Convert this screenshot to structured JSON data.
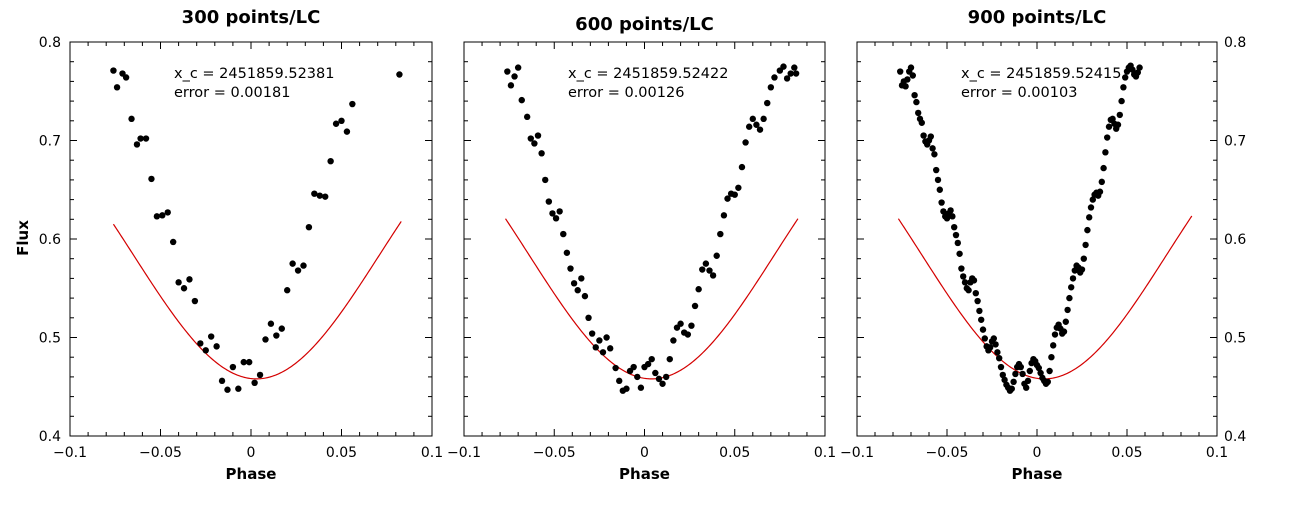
{
  "figure": {
    "ylabel": "Flux"
  },
  "chart_data": [
    {
      "type": "scatter",
      "title": "300 points/LC",
      "xlabel": "Phase",
      "ylabel": "Flux",
      "xlim": [
        -0.1,
        0.1
      ],
      "ylim": [
        0.4,
        0.8
      ],
      "x_ticks": [
        -0.1,
        -0.05,
        0,
        0.05,
        0.1
      ],
      "x_tick_labels": [
        "−0.1",
        "−0.05",
        "0",
        "0.05",
        "0.1"
      ],
      "y_ticks": [
        0.4,
        0.5,
        0.6,
        0.7,
        0.8
      ],
      "y_tick_labels": [
        "0.4",
        "0.5",
        "0.6",
        "0.7",
        "0.8"
      ],
      "y_tick_side": "left",
      "annotation": [
        "x_c = 2451859.52381",
        "error = 0.00181"
      ],
      "fit": {
        "center": 0.003,
        "depth_min": 0.458,
        "amplitude": 0.32,
        "width": 0.068,
        "x_range": [
          -0.076,
          0.083
        ],
        "color": "#d40000"
      },
      "points": [
        {
          "x": -0.076,
          "y": 0.771
        },
        {
          "x": -0.074,
          "y": 0.754
        },
        {
          "x": -0.071,
          "y": 0.768
        },
        {
          "x": -0.069,
          "y": 0.764
        },
        {
          "x": -0.066,
          "y": 0.722
        },
        {
          "x": -0.063,
          "y": 0.696
        },
        {
          "x": -0.061,
          "y": 0.702
        },
        {
          "x": -0.058,
          "y": 0.702
        },
        {
          "x": -0.055,
          "y": 0.661
        },
        {
          "x": -0.052,
          "y": 0.623
        },
        {
          "x": -0.049,
          "y": 0.624
        },
        {
          "x": -0.046,
          "y": 0.627
        },
        {
          "x": -0.043,
          "y": 0.597
        },
        {
          "x": -0.04,
          "y": 0.556
        },
        {
          "x": -0.037,
          "y": 0.55
        },
        {
          "x": -0.034,
          "y": 0.559
        },
        {
          "x": -0.031,
          "y": 0.537
        },
        {
          "x": -0.028,
          "y": 0.494
        },
        {
          "x": -0.025,
          "y": 0.487
        },
        {
          "x": -0.022,
          "y": 0.501
        },
        {
          "x": -0.019,
          "y": 0.491
        },
        {
          "x": -0.016,
          "y": 0.456
        },
        {
          "x": -0.013,
          "y": 0.447
        },
        {
          "x": -0.01,
          "y": 0.47
        },
        {
          "x": -0.007,
          "y": 0.448
        },
        {
          "x": -0.004,
          "y": 0.475
        },
        {
          "x": -0.001,
          "y": 0.475
        },
        {
          "x": 0.002,
          "y": 0.454
        },
        {
          "x": 0.005,
          "y": 0.462
        },
        {
          "x": 0.008,
          "y": 0.498
        },
        {
          "x": 0.011,
          "y": 0.514
        },
        {
          "x": 0.014,
          "y": 0.502
        },
        {
          "x": 0.017,
          "y": 0.509
        },
        {
          "x": 0.02,
          "y": 0.548
        },
        {
          "x": 0.023,
          "y": 0.575
        },
        {
          "x": 0.026,
          "y": 0.568
        },
        {
          "x": 0.029,
          "y": 0.573
        },
        {
          "x": 0.032,
          "y": 0.612
        },
        {
          "x": 0.035,
          "y": 0.646
        },
        {
          "x": 0.038,
          "y": 0.644
        },
        {
          "x": 0.041,
          "y": 0.643
        },
        {
          "x": 0.044,
          "y": 0.679
        },
        {
          "x": 0.047,
          "y": 0.717
        },
        {
          "x": 0.05,
          "y": 0.72
        },
        {
          "x": 0.053,
          "y": 0.709
        },
        {
          "x": 0.056,
          "y": 0.737
        },
        {
          "x": 0.082,
          "y": 0.767
        }
      ]
    },
    {
      "type": "scatter",
      "title": "600 points/LC",
      "xlabel": "Phase",
      "ylabel": "",
      "xlim": [
        -0.1,
        0.1
      ],
      "ylim": [
        0.4,
        0.8
      ],
      "x_ticks": [
        -0.1,
        -0.05,
        0,
        0.05,
        0.1
      ],
      "x_tick_labels": [
        "−0.1",
        "−0.05",
        "0",
        "0.05",
        "0.1"
      ],
      "y_ticks": [
        0.4,
        0.5,
        0.6,
        0.7,
        0.8
      ],
      "y_tick_labels": [],
      "y_tick_side": "none",
      "annotation": [
        "x_c = 2451859.52422",
        "error = 0.00126"
      ],
      "fit": {
        "center": 0.004,
        "depth_min": 0.458,
        "amplitude": 0.32,
        "width": 0.068,
        "x_range": [
          -0.077,
          0.085
        ],
        "color": "#d40000"
      },
      "points": [
        {
          "x": -0.076,
          "y": 0.77
        },
        {
          "x": -0.074,
          "y": 0.756
        },
        {
          "x": -0.072,
          "y": 0.765
        },
        {
          "x": -0.07,
          "y": 0.774
        },
        {
          "x": -0.068,
          "y": 0.741
        },
        {
          "x": -0.065,
          "y": 0.724
        },
        {
          "x": -0.063,
          "y": 0.702
        },
        {
          "x": -0.061,
          "y": 0.697
        },
        {
          "x": -0.059,
          "y": 0.705
        },
        {
          "x": -0.057,
          "y": 0.687
        },
        {
          "x": -0.055,
          "y": 0.66
        },
        {
          "x": -0.053,
          "y": 0.638
        },
        {
          "x": -0.051,
          "y": 0.626
        },
        {
          "x": -0.049,
          "y": 0.621
        },
        {
          "x": -0.047,
          "y": 0.628
        },
        {
          "x": -0.045,
          "y": 0.605
        },
        {
          "x": -0.043,
          "y": 0.586
        },
        {
          "x": -0.041,
          "y": 0.57
        },
        {
          "x": -0.039,
          "y": 0.555
        },
        {
          "x": -0.037,
          "y": 0.548
        },
        {
          "x": -0.035,
          "y": 0.56
        },
        {
          "x": -0.033,
          "y": 0.542
        },
        {
          "x": -0.031,
          "y": 0.52
        },
        {
          "x": -0.029,
          "y": 0.504
        },
        {
          "x": -0.027,
          "y": 0.49
        },
        {
          "x": -0.025,
          "y": 0.497
        },
        {
          "x": -0.023,
          "y": 0.485
        },
        {
          "x": -0.021,
          "y": 0.5
        },
        {
          "x": -0.019,
          "y": 0.489
        },
        {
          "x": -0.016,
          "y": 0.469
        },
        {
          "x": -0.014,
          "y": 0.456
        },
        {
          "x": -0.012,
          "y": 0.446
        },
        {
          "x": -0.01,
          "y": 0.448
        },
        {
          "x": -0.008,
          "y": 0.466
        },
        {
          "x": -0.006,
          "y": 0.47
        },
        {
          "x": -0.004,
          "y": 0.46
        },
        {
          "x": -0.002,
          "y": 0.449
        },
        {
          "x": 0.0,
          "y": 0.47
        },
        {
          "x": 0.002,
          "y": 0.473
        },
        {
          "x": 0.004,
          "y": 0.478
        },
        {
          "x": 0.006,
          "y": 0.464
        },
        {
          "x": 0.008,
          "y": 0.458
        },
        {
          "x": 0.01,
          "y": 0.453
        },
        {
          "x": 0.012,
          "y": 0.46
        },
        {
          "x": 0.014,
          "y": 0.478
        },
        {
          "x": 0.016,
          "y": 0.497
        },
        {
          "x": 0.018,
          "y": 0.51
        },
        {
          "x": 0.02,
          "y": 0.514
        },
        {
          "x": 0.022,
          "y": 0.505
        },
        {
          "x": 0.024,
          "y": 0.503
        },
        {
          "x": 0.026,
          "y": 0.512
        },
        {
          "x": 0.028,
          "y": 0.532
        },
        {
          "x": 0.03,
          "y": 0.549
        },
        {
          "x": 0.032,
          "y": 0.569
        },
        {
          "x": 0.034,
          "y": 0.575
        },
        {
          "x": 0.036,
          "y": 0.568
        },
        {
          "x": 0.038,
          "y": 0.563
        },
        {
          "x": 0.04,
          "y": 0.583
        },
        {
          "x": 0.042,
          "y": 0.605
        },
        {
          "x": 0.044,
          "y": 0.624
        },
        {
          "x": 0.046,
          "y": 0.641
        },
        {
          "x": 0.048,
          "y": 0.646
        },
        {
          "x": 0.05,
          "y": 0.645
        },
        {
          "x": 0.052,
          "y": 0.652
        },
        {
          "x": 0.054,
          "y": 0.673
        },
        {
          "x": 0.056,
          "y": 0.698
        },
        {
          "x": 0.058,
          "y": 0.714
        },
        {
          "x": 0.06,
          "y": 0.722
        },
        {
          "x": 0.062,
          "y": 0.716
        },
        {
          "x": 0.064,
          "y": 0.711
        },
        {
          "x": 0.066,
          "y": 0.722
        },
        {
          "x": 0.068,
          "y": 0.738
        },
        {
          "x": 0.07,
          "y": 0.754
        },
        {
          "x": 0.072,
          "y": 0.764
        },
        {
          "x": 0.075,
          "y": 0.771
        },
        {
          "x": 0.077,
          "y": 0.775
        },
        {
          "x": 0.079,
          "y": 0.763
        },
        {
          "x": 0.081,
          "y": 0.768
        },
        {
          "x": 0.083,
          "y": 0.774
        },
        {
          "x": 0.084,
          "y": 0.768
        }
      ]
    },
    {
      "type": "scatter",
      "title": "900 points/LC",
      "xlabel": "Phase",
      "ylabel": "",
      "xlim": [
        -0.1,
        0.1
      ],
      "ylim": [
        0.4,
        0.8
      ],
      "x_ticks": [
        -0.1,
        -0.05,
        0,
        0.05,
        0.1
      ],
      "x_tick_labels": [
        "−0.1",
        "−0.05",
        "0",
        "0.05",
        "0.1"
      ],
      "y_ticks": [
        0.4,
        0.5,
        0.6,
        0.7,
        0.8
      ],
      "y_tick_labels": [
        "0.4",
        "0.5",
        "0.6",
        "0.7",
        "0.8"
      ],
      "y_tick_side": "right",
      "annotation": [
        "x_c = 2451859.52415",
        "error = 0.00103"
      ],
      "fit": {
        "center": 0.004,
        "depth_min": 0.458,
        "amplitude": 0.32,
        "width": 0.068,
        "x_range": [
          -0.077,
          0.086
        ],
        "color": "#d40000"
      },
      "points": [
        {
          "x": -0.076,
          "y": 0.77
        },
        {
          "x": -0.075,
          "y": 0.756
        },
        {
          "x": -0.074,
          "y": 0.76
        },
        {
          "x": -0.073,
          "y": 0.755
        },
        {
          "x": -0.072,
          "y": 0.762
        },
        {
          "x": -0.071,
          "y": 0.77
        },
        {
          "x": -0.07,
          "y": 0.774
        },
        {
          "x": -0.069,
          "y": 0.766
        },
        {
          "x": -0.068,
          "y": 0.746
        },
        {
          "x": -0.067,
          "y": 0.739
        },
        {
          "x": -0.066,
          "y": 0.728
        },
        {
          "x": -0.065,
          "y": 0.722
        },
        {
          "x": -0.064,
          "y": 0.718
        },
        {
          "x": -0.063,
          "y": 0.705
        },
        {
          "x": -0.062,
          "y": 0.699
        },
        {
          "x": -0.061,
          "y": 0.696
        },
        {
          "x": -0.06,
          "y": 0.7
        },
        {
          "x": -0.059,
          "y": 0.704
        },
        {
          "x": -0.058,
          "y": 0.692
        },
        {
          "x": -0.057,
          "y": 0.686
        },
        {
          "x": -0.056,
          "y": 0.67
        },
        {
          "x": -0.055,
          "y": 0.66
        },
        {
          "x": -0.054,
          "y": 0.65
        },
        {
          "x": -0.053,
          "y": 0.637
        },
        {
          "x": -0.052,
          "y": 0.628
        },
        {
          "x": -0.051,
          "y": 0.623
        },
        {
          "x": -0.05,
          "y": 0.621
        },
        {
          "x": -0.049,
          "y": 0.626
        },
        {
          "x": -0.048,
          "y": 0.629
        },
        {
          "x": -0.047,
          "y": 0.623
        },
        {
          "x": -0.046,
          "y": 0.612
        },
        {
          "x": -0.045,
          "y": 0.604
        },
        {
          "x": -0.044,
          "y": 0.596
        },
        {
          "x": -0.043,
          "y": 0.585
        },
        {
          "x": -0.042,
          "y": 0.57
        },
        {
          "x": -0.041,
          "y": 0.562
        },
        {
          "x": -0.04,
          "y": 0.556
        },
        {
          "x": -0.039,
          "y": 0.55
        },
        {
          "x": -0.038,
          "y": 0.548
        },
        {
          "x": -0.037,
          "y": 0.556
        },
        {
          "x": -0.036,
          "y": 0.56
        },
        {
          "x": -0.035,
          "y": 0.558
        },
        {
          "x": -0.034,
          "y": 0.545
        },
        {
          "x": -0.033,
          "y": 0.537
        },
        {
          "x": -0.032,
          "y": 0.527
        },
        {
          "x": -0.031,
          "y": 0.518
        },
        {
          "x": -0.03,
          "y": 0.508
        },
        {
          "x": -0.029,
          "y": 0.499
        },
        {
          "x": -0.028,
          "y": 0.491
        },
        {
          "x": -0.027,
          "y": 0.487
        },
        {
          "x": -0.026,
          "y": 0.49
        },
        {
          "x": -0.025,
          "y": 0.496
        },
        {
          "x": -0.024,
          "y": 0.499
        },
        {
          "x": -0.023,
          "y": 0.493
        },
        {
          "x": -0.022,
          "y": 0.485
        },
        {
          "x": -0.021,
          "y": 0.479
        },
        {
          "x": -0.02,
          "y": 0.47
        },
        {
          "x": -0.019,
          "y": 0.462
        },
        {
          "x": -0.018,
          "y": 0.457
        },
        {
          "x": -0.017,
          "y": 0.452
        },
        {
          "x": -0.016,
          "y": 0.449
        },
        {
          "x": -0.015,
          "y": 0.446
        },
        {
          "x": -0.014,
          "y": 0.448
        },
        {
          "x": -0.013,
          "y": 0.455
        },
        {
          "x": -0.012,
          "y": 0.463
        },
        {
          "x": -0.011,
          "y": 0.47
        },
        {
          "x": -0.01,
          "y": 0.473
        },
        {
          "x": -0.009,
          "y": 0.47
        },
        {
          "x": -0.008,
          "y": 0.463
        },
        {
          "x": -0.007,
          "y": 0.453
        },
        {
          "x": -0.006,
          "y": 0.449
        },
        {
          "x": -0.005,
          "y": 0.456
        },
        {
          "x": -0.004,
          "y": 0.466
        },
        {
          "x": -0.003,
          "y": 0.474
        },
        {
          "x": -0.002,
          "y": 0.478
        },
        {
          "x": -0.001,
          "y": 0.476
        },
        {
          "x": 0.0,
          "y": 0.472
        },
        {
          "x": 0.001,
          "y": 0.469
        },
        {
          "x": 0.002,
          "y": 0.464
        },
        {
          "x": 0.003,
          "y": 0.459
        },
        {
          "x": 0.004,
          "y": 0.456
        },
        {
          "x": 0.005,
          "y": 0.453
        },
        {
          "x": 0.006,
          "y": 0.455
        },
        {
          "x": 0.007,
          "y": 0.466
        },
        {
          "x": 0.008,
          "y": 0.48
        },
        {
          "x": 0.009,
          "y": 0.492
        },
        {
          "x": 0.01,
          "y": 0.503
        },
        {
          "x": 0.011,
          "y": 0.51
        },
        {
          "x": 0.012,
          "y": 0.513
        },
        {
          "x": 0.013,
          "y": 0.509
        },
        {
          "x": 0.014,
          "y": 0.504
        },
        {
          "x": 0.015,
          "y": 0.506
        },
        {
          "x": 0.016,
          "y": 0.516
        },
        {
          "x": 0.017,
          "y": 0.528
        },
        {
          "x": 0.018,
          "y": 0.54
        },
        {
          "x": 0.019,
          "y": 0.551
        },
        {
          "x": 0.02,
          "y": 0.56
        },
        {
          "x": 0.021,
          "y": 0.568
        },
        {
          "x": 0.022,
          "y": 0.573
        },
        {
          "x": 0.023,
          "y": 0.571
        },
        {
          "x": 0.024,
          "y": 0.566
        },
        {
          "x": 0.025,
          "y": 0.569
        },
        {
          "x": 0.026,
          "y": 0.58
        },
        {
          "x": 0.027,
          "y": 0.594
        },
        {
          "x": 0.028,
          "y": 0.609
        },
        {
          "x": 0.029,
          "y": 0.622
        },
        {
          "x": 0.03,
          "y": 0.632
        },
        {
          "x": 0.031,
          "y": 0.64
        },
        {
          "x": 0.032,
          "y": 0.645
        },
        {
          "x": 0.033,
          "y": 0.647
        },
        {
          "x": 0.034,
          "y": 0.644
        },
        {
          "x": 0.035,
          "y": 0.648
        },
        {
          "x": 0.036,
          "y": 0.658
        },
        {
          "x": 0.037,
          "y": 0.672
        },
        {
          "x": 0.038,
          "y": 0.688
        },
        {
          "x": 0.039,
          "y": 0.703
        },
        {
          "x": 0.04,
          "y": 0.714
        },
        {
          "x": 0.041,
          "y": 0.721
        },
        {
          "x": 0.042,
          "y": 0.722
        },
        {
          "x": 0.043,
          "y": 0.717
        },
        {
          "x": 0.044,
          "y": 0.712
        },
        {
          "x": 0.045,
          "y": 0.716
        },
        {
          "x": 0.046,
          "y": 0.726
        },
        {
          "x": 0.047,
          "y": 0.74
        },
        {
          "x": 0.048,
          "y": 0.754
        },
        {
          "x": 0.049,
          "y": 0.764
        },
        {
          "x": 0.05,
          "y": 0.77
        },
        {
          "x": 0.051,
          "y": 0.774
        },
        {
          "x": 0.052,
          "y": 0.776
        },
        {
          "x": 0.053,
          "y": 0.772
        },
        {
          "x": 0.054,
          "y": 0.767
        },
        {
          "x": 0.055,
          "y": 0.765
        },
        {
          "x": 0.056,
          "y": 0.769
        },
        {
          "x": 0.057,
          "y": 0.774
        }
      ]
    }
  ]
}
